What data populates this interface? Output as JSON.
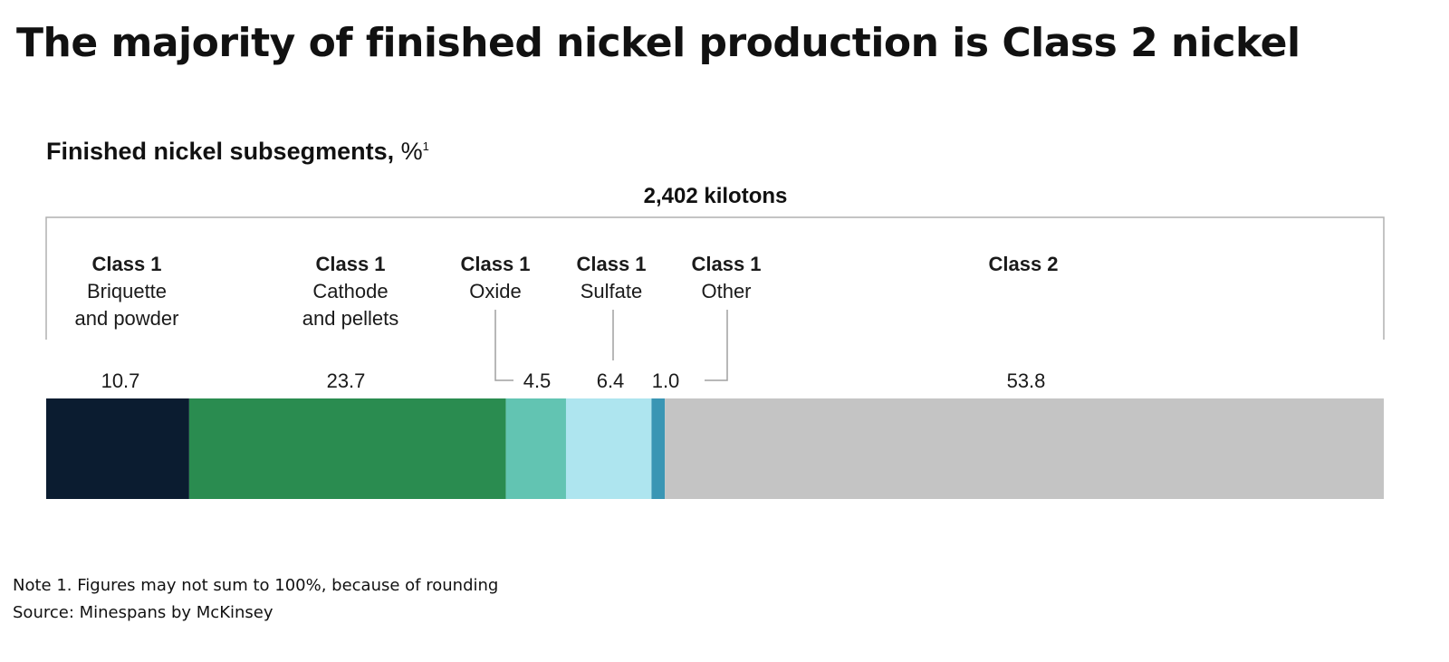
{
  "title": "The majority of finished nickel production is Class 2 nickel",
  "notes": {
    "note1": "Note 1. Figures may not sum to 100%, because of rounding",
    "source": "Source: Minespans by McKinsey"
  },
  "chart_data": {
    "type": "bar",
    "orientation": "horizontal-stacked-100",
    "title": "Finished nickel subsegments,",
    "unit": "%",
    "unit_footnote": "1",
    "total_label": "2,402 kilotons",
    "segments": [
      {
        "class": "Class 1",
        "name": "Briquette and powder",
        "value": 10.7,
        "value_label": "10.7",
        "color": "#0b1c30"
      },
      {
        "class": "Class 1",
        "name": "Cathode and pellets",
        "value": 23.7,
        "value_label": "23.7",
        "color": "#2a8c50"
      },
      {
        "class": "Class 1",
        "name": "Oxide",
        "value": 4.5,
        "value_label": "4.5",
        "color": "#62c4b2"
      },
      {
        "class": "Class 1",
        "name": "Sulfate",
        "value": 6.4,
        "value_label": "6.4",
        "color": "#aee5ef"
      },
      {
        "class": "Class 1",
        "name": "Other",
        "value": 1.0,
        "value_label": "1.0",
        "color": "#3a96b4"
      },
      {
        "class": "Class 2",
        "name": "",
        "value": 53.8,
        "value_label": "53.8",
        "color": "#c4c4c4"
      }
    ]
  }
}
